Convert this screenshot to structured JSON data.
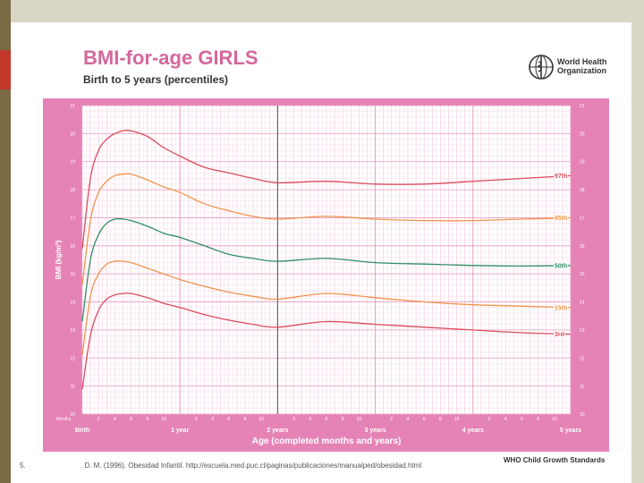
{
  "page_number": "5.",
  "source_citation": ". D. M. (1996). Obesidad Infantil. http://escuela.med.puc.cl/paginas/publicaciones/manualped/obesidad.html",
  "who": {
    "name_line1": "World Health",
    "name_line2": "Organization",
    "logo_icon": "who-emblem-icon",
    "standards": "WHO Child Growth Standards"
  },
  "colors": {
    "background": "#e683b6",
    "plot": "#ffffff",
    "grid": "#f4c6dc",
    "p97": "#d94c5c",
    "p85": "#f0944c",
    "p50": "#2f8f63",
    "p15": "#f0944c",
    "p3": "#d94c5c"
  },
  "chart_data": {
    "type": "line",
    "title": "BMI-for-age GIRLS",
    "subtitle": "Birth to 5 years (percentiles)",
    "xlabel": "Age (completed months and years)",
    "ylabel": "BMI (kg/m²)",
    "xlim": [
      0,
      60
    ],
    "ylim": [
      10,
      21
    ],
    "grid": true,
    "x_unit": "months",
    "months_label": "Months",
    "y_ticks": [
      10,
      11,
      12,
      13,
      14,
      15,
      16,
      17,
      18,
      19,
      20,
      21
    ],
    "x_major_ticks": [
      {
        "x": 0,
        "label": "Birth"
      },
      {
        "x": 12,
        "label": "1 year"
      },
      {
        "x": 24,
        "label": "2 years"
      },
      {
        "x": 36,
        "label": "3 years"
      },
      {
        "x": 48,
        "label": "4 years"
      },
      {
        "x": 60,
        "label": "5 years"
      }
    ],
    "x_minor_labels": [
      "2",
      "4",
      "6",
      "8",
      "10",
      "2",
      "4",
      "6",
      "8",
      "10",
      "2",
      "4",
      "6",
      "8",
      "10",
      "2",
      "4",
      "6",
      "8",
      "10",
      "2",
      "4",
      "6",
      "8",
      "10"
    ],
    "x_minor_values": [
      2,
      4,
      6,
      8,
      10,
      14,
      16,
      18,
      20,
      22,
      26,
      28,
      30,
      32,
      34,
      38,
      40,
      42,
      44,
      46,
      50,
      52,
      54,
      56,
      58
    ],
    "x": [
      0,
      1,
      2,
      3,
      4,
      5,
      6,
      8,
      10,
      12,
      15,
      18,
      21,
      24,
      30,
      36,
      42,
      48,
      54,
      60
    ],
    "series": [
      {
        "name": "97th",
        "values": [
          15.9,
          18.4,
          19.4,
          19.8,
          20.0,
          20.1,
          20.1,
          19.9,
          19.5,
          19.2,
          18.8,
          18.6,
          18.4,
          18.25,
          18.3,
          18.2,
          18.2,
          18.3,
          18.4,
          18.5
        ]
      },
      {
        "name": "85th",
        "values": [
          14.6,
          16.9,
          17.9,
          18.3,
          18.5,
          18.55,
          18.55,
          18.35,
          18.1,
          17.9,
          17.5,
          17.25,
          17.05,
          16.95,
          17.05,
          16.95,
          16.9,
          16.9,
          16.95,
          17.0
        ]
      },
      {
        "name": "50th",
        "values": [
          13.3,
          15.5,
          16.4,
          16.8,
          16.95,
          16.95,
          16.9,
          16.7,
          16.45,
          16.3,
          16.0,
          15.7,
          15.55,
          15.45,
          15.55,
          15.4,
          15.35,
          15.3,
          15.28,
          15.3
        ]
      },
      {
        "name": "15th",
        "values": [
          12.1,
          14.2,
          15.0,
          15.35,
          15.45,
          15.45,
          15.4,
          15.2,
          15.0,
          14.8,
          14.55,
          14.35,
          14.2,
          14.1,
          14.3,
          14.15,
          14.0,
          13.9,
          13.85,
          13.8
        ]
      },
      {
        "name": "3rd",
        "values": [
          10.9,
          12.8,
          13.7,
          14.1,
          14.25,
          14.3,
          14.3,
          14.15,
          13.95,
          13.8,
          13.55,
          13.35,
          13.2,
          13.1,
          13.3,
          13.2,
          13.1,
          13.0,
          12.9,
          12.85
        ]
      }
    ]
  }
}
